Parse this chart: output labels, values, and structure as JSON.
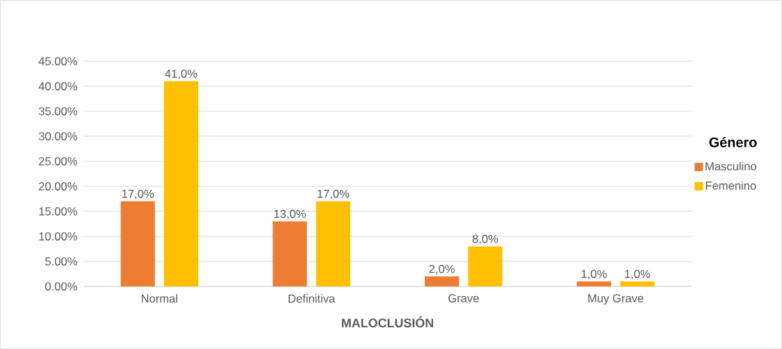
{
  "chart_data": {
    "type": "bar",
    "xlabel": "MALOCLUSIÓN",
    "legend_title": "Género",
    "legend": "right",
    "grid": "y",
    "categories": [
      "Normal",
      "Definitiva",
      "Grave",
      "Muy Grave"
    ],
    "series": [
      {
        "name": "Masculino",
        "color": "#ed7d31",
        "values": [
          17,
          13,
          2,
          1
        ],
        "value_labels": [
          "17,0%",
          "13,0%",
          "2,0%",
          "1,0%"
        ]
      },
      {
        "name": "Femenino",
        "color": "#ffc000",
        "values": [
          41,
          17,
          8,
          1
        ],
        "value_labels": [
          "41,0%",
          "17,0%",
          "8,0%",
          "1,0%"
        ]
      }
    ],
    "ylim": [
      0,
      45
    ],
    "yticks": [
      {
        "value": 0,
        "label": "0.00%"
      },
      {
        "value": 5,
        "label": "5.00%"
      },
      {
        "value": 10,
        "label": "10.00%"
      },
      {
        "value": 15,
        "label": "15.00%"
      },
      {
        "value": 20,
        "label": "20.00%"
      },
      {
        "value": 25,
        "label": "25.00%"
      },
      {
        "value": 30,
        "label": "30.00%"
      },
      {
        "value": 35,
        "label": "35.00%"
      },
      {
        "value": 40,
        "label": "40.00%"
      },
      {
        "value": 45,
        "label": "45.00%"
      }
    ]
  }
}
